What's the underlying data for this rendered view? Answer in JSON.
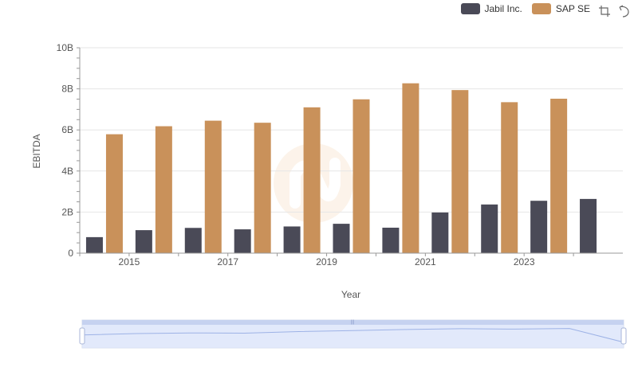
{
  "chart_data": {
    "type": "bar",
    "categories": [
      "2014",
      "2015",
      "2016",
      "2017",
      "2018",
      "2019",
      "2020",
      "2021",
      "2022",
      "2023",
      "2024"
    ],
    "series": [
      {
        "name": "Jabil Inc.",
        "color": "#4a4a57",
        "values": [
          0.78,
          1.12,
          1.23,
          1.16,
          1.3,
          1.43,
          1.24,
          1.98,
          2.37,
          2.55,
          2.64
        ]
      },
      {
        "name": "SAP SE",
        "color": "#c9915a",
        "values": [
          5.79,
          6.18,
          6.45,
          6.35,
          7.1,
          7.49,
          8.27,
          7.94,
          7.35,
          7.52,
          null
        ]
      }
    ],
    "xlabel": "Year",
    "ylabel": "EBITDA",
    "ylim": [
      0,
      10
    ],
    "y_ticks": [
      "0",
      "2B",
      "4B",
      "6B",
      "8B",
      "10B"
    ],
    "x_ticks": [
      "2015",
      "2017",
      "2019",
      "2021",
      "2023"
    ],
    "legend_position": "top-right"
  },
  "toolbar": {
    "zoom_icon": "zoom-icon",
    "restore_icon": "restore-icon"
  }
}
